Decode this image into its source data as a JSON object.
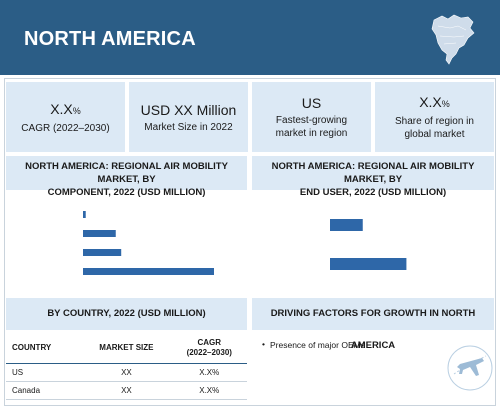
{
  "header": {
    "title": "NORTH AMERICA",
    "map_icon": "north-america-map-icon"
  },
  "kpis": [
    {
      "value": "X.X",
      "suffix": "%",
      "label_line1": "CAGR (2022–2030)",
      "label_line2": ""
    },
    {
      "value": "USD XX Million",
      "suffix": "",
      "label_line1": "Market Size in 2022",
      "label_line2": ""
    },
    {
      "value": "US",
      "suffix": "",
      "label_line1": "Fastest-growing",
      "label_line2": "market in region"
    },
    {
      "value": "X.X",
      "suffix": "%",
      "label_line1": "Share of region in",
      "label_line2": "global market"
    }
  ],
  "component_chart": {
    "title_line1": "NORTH AMERICA: REGIONAL AIR MOBILITY MARKET, BY",
    "title_line2": "COMPONENT, 2022 (USD MILLION)"
  },
  "end_user_chart": {
    "title_line1": "NORTH AMERICA: REGIONAL AIR MOBILITY MARKET, BY",
    "title_line2": "END USER, 2022 (USD MILLION)"
  },
  "chart_data": [
    {
      "type": "bar",
      "orientation": "horizontal",
      "title": "NORTH AMERICA: REGIONAL AIR MOBILITY MARKET, BY COMPONENT, 2022 (USD MILLION)",
      "categories": [
        "",
        "",
        "",
        ""
      ],
      "values": [
        0.5,
        6,
        7,
        24
      ],
      "xlim": [
        0,
        24
      ],
      "color": "#2e67a8",
      "grid": false
    },
    {
      "type": "bar",
      "orientation": "horizontal",
      "title": "NORTH AMERICA: REGIONAL AIR MOBILITY MARKET, BY END USER, 2022 (USD MILLION)",
      "categories": [
        "",
        ""
      ],
      "values": [
        6,
        14
      ],
      "xlim": [
        0,
        24
      ],
      "color": "#2e67a8",
      "grid": false
    }
  ],
  "country_section": {
    "title": "BY COUNTRY, 2022 (USD MILLION)",
    "columns": [
      "COUNTRY",
      "MARKET SIZE",
      "CAGR",
      "(2022–2030)"
    ],
    "rows": [
      {
        "country": "US",
        "market_size": "XX",
        "cagr": "X.X%"
      },
      {
        "country": "Canada",
        "market_size": "XX",
        "cagr": "X.X%"
      }
    ]
  },
  "drivers_section": {
    "title": "DRIVING FACTORS FOR GROWTH IN NORTH AMERICA",
    "items": [
      "Presence of major OEMs"
    ],
    "icon": "airplane-icon"
  },
  "colors": {
    "header_bg": "#2b5d86",
    "panel_bg": "#dce9f5",
    "bar": "#2e67a8"
  }
}
